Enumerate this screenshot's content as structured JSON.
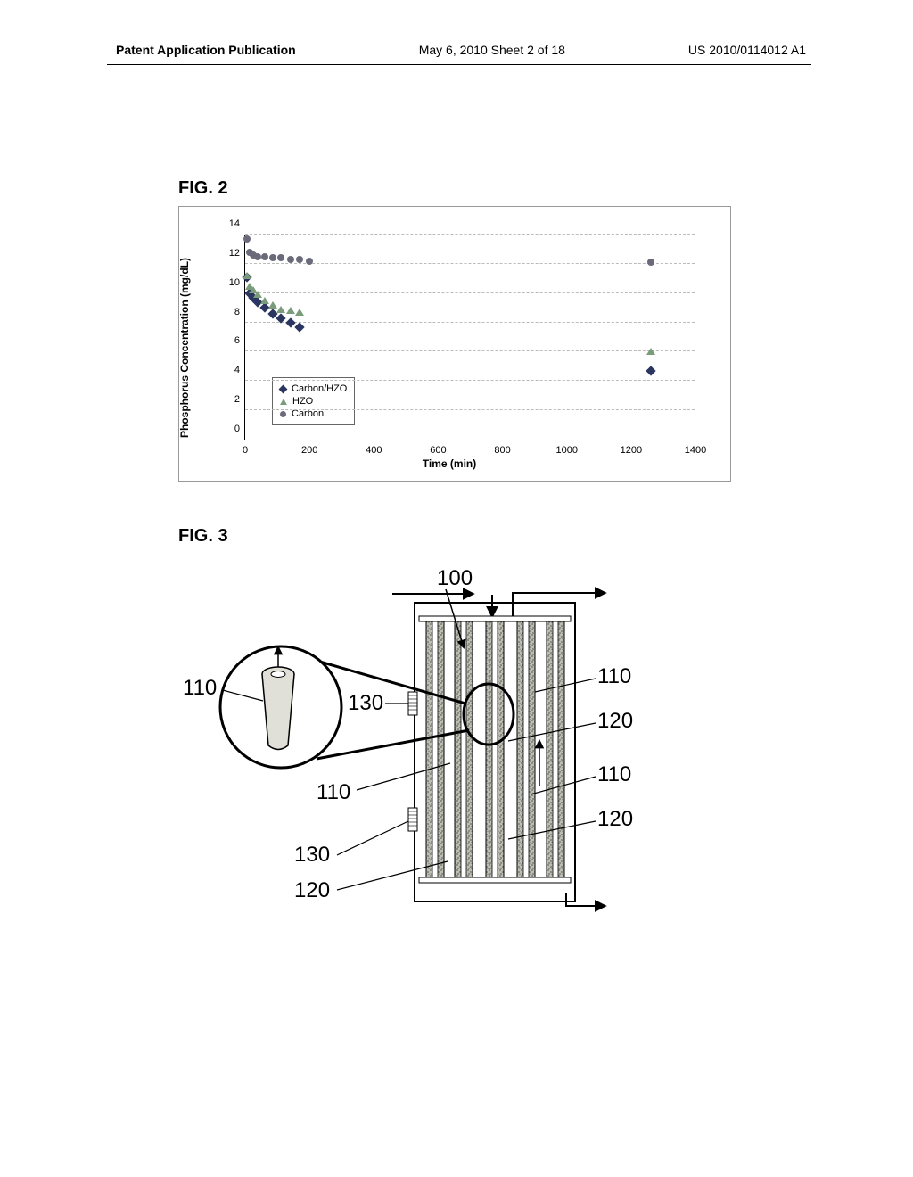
{
  "header": {
    "left": "Patent Application Publication",
    "center": "May 6, 2010  Sheet 2 of 18",
    "right": "US 2010/0114012 A1"
  },
  "fig2": {
    "label": "FIG. 2",
    "type": "scatter",
    "xlabel": "Time (min)",
    "ylabel": "Phosphorus Concentration (mg/dL)",
    "xlim": [
      0,
      1400
    ],
    "ylim": [
      0,
      14
    ],
    "xtick_step": 200,
    "ytick_step": 2,
    "grid": true,
    "grid_color": "#bbbbbb",
    "marker_colors": {
      "carbon_hzo": "#2a3560",
      "hzo": "#7a9c7a",
      "carbon": "#6a6a7a"
    },
    "legend": {
      "items": [
        {
          "label": "Carbon/HZO",
          "marker": "diamond",
          "color": "#2a3560"
        },
        {
          "label": "HZO",
          "marker": "triangle",
          "color": "#7a9c7a"
        },
        {
          "label": "Carbon",
          "marker": "circle",
          "color": "#6a6a7a"
        }
      ]
    },
    "series": {
      "carbon_hzo": {
        "marker": "diamond",
        "x": [
          5,
          15,
          25,
          40,
          60,
          85,
          110,
          140,
          170,
          1260
        ],
        "y": [
          11.1,
          10.0,
          9.7,
          9.4,
          9.0,
          8.6,
          8.3,
          8.0,
          7.7,
          4.7
        ]
      },
      "hzo": {
        "marker": "triangle",
        "x": [
          5,
          15,
          25,
          40,
          60,
          85,
          110,
          140,
          170,
          1260
        ],
        "y": [
          11.2,
          10.5,
          10.2,
          9.9,
          9.5,
          9.2,
          8.9,
          8.8,
          8.7,
          6.0
        ]
      },
      "carbon": {
        "marker": "circle",
        "x": [
          5,
          15,
          25,
          40,
          60,
          85,
          110,
          140,
          170,
          200,
          1260
        ],
        "y": [
          13.7,
          12.8,
          12.6,
          12.5,
          12.5,
          12.4,
          12.4,
          12.3,
          12.3,
          12.2,
          12.1
        ]
      }
    }
  },
  "fig3": {
    "label": "FIG. 3",
    "type": "diagram",
    "callouts": {
      "main": "100",
      "fiber": "110",
      "gap": "120",
      "side_element": "130"
    },
    "fiber_fill": "#9c9c94",
    "line_color": "#000000"
  }
}
